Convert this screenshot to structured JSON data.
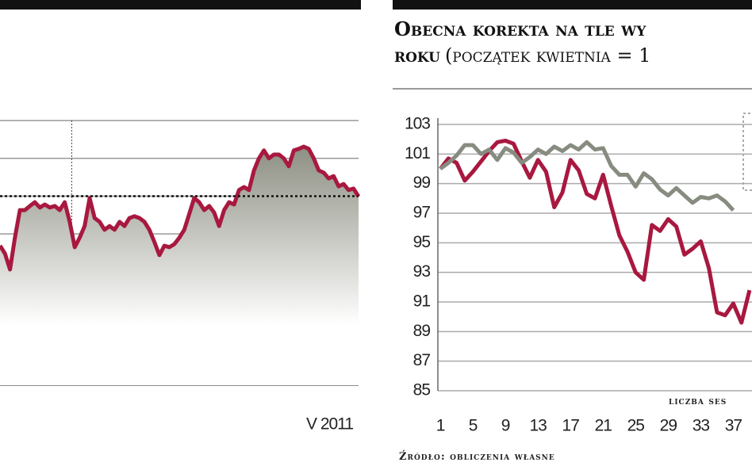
{
  "chart_data": [
    {
      "type": "line",
      "series": [
        {
          "color": "#a8183f",
          "values": [
            3.69,
            3.48,
            3.06,
            3.9,
            4.63,
            4.63,
            4.74,
            4.84,
            4.7,
            4.78,
            4.7,
            4.74,
            4.63,
            4.84,
            4.32,
            3.65,
            3.9,
            4.21,
            4.95,
            4.42,
            4.32,
            4.11,
            4.21,
            4.11,
            4.32,
            4.21,
            4.42,
            4.47,
            4.42,
            4.32,
            4.11,
            3.79,
            3.44,
            3.69,
            3.65,
            3.73,
            3.9,
            4.11,
            4.53,
            4.95,
            4.84,
            4.63,
            4.74,
            4.57,
            4.21,
            4.63,
            4.84,
            4.78,
            5.16,
            5.24,
            5.16,
            5.68,
            6.0,
            6.21,
            6.0,
            6.1,
            6.1,
            6.0,
            5.79,
            6.21,
            6.25,
            6.31,
            6.25,
            6.0,
            5.68,
            5.62,
            5.47,
            5.53,
            5.26,
            5.32,
            5.16,
            5.2,
            4.99
          ]
        }
      ],
      "ylim": [
        0,
        7.84
      ],
      "grid_lines": [
        0,
        1,
        2,
        3,
        4,
        5,
        6,
        7
      ],
      "grid": true,
      "reference_line": 5,
      "vline_index": 14.4,
      "area_fill": true,
      "annotation": "V 2011"
    },
    {
      "type": "line",
      "title": "Obecna korekta na tle wy",
      "subtitle_bold": "roku",
      "subtitle": "(początek kwietnia = 1",
      "x": [
        1,
        2,
        3,
        4,
        5,
        6,
        7,
        8,
        9,
        10,
        11,
        12,
        13,
        14,
        15,
        16,
        17,
        18,
        19,
        20,
        21,
        22,
        23,
        24,
        25,
        26,
        27,
        28,
        29,
        30,
        31,
        32,
        33,
        34,
        35,
        36,
        37,
        38,
        39
      ],
      "series": [
        {
          "color": "#a8183f",
          "values": [
            100,
            100.7,
            100.4,
            99.2,
            99.8,
            100.5,
            101.2,
            101.8,
            101.9,
            101.7,
            100.5,
            99.4,
            100.6,
            99.8,
            97.4,
            98.4,
            100.6,
            99.9,
            98.3,
            98,
            99.6,
            97.5,
            95.5,
            94.4,
            93,
            92.5,
            96.2,
            95.8,
            96.6,
            96.1,
            94.2,
            94.6,
            95.1,
            93.3,
            90.3,
            90.1,
            90.9,
            89.6,
            91.8
          ]
        },
        {
          "color": "#878c80",
          "values": [
            100,
            100.4,
            100.9,
            101.6,
            101.6,
            101,
            101.3,
            100.6,
            101.4,
            101.1,
            100.4,
            100.8,
            101.3,
            101,
            101.5,
            101.2,
            101.6,
            101.3,
            101.8,
            101.3,
            101.4,
            100.2,
            99.6,
            99.6,
            98.8,
            99.7,
            99.3,
            98.6,
            98.2,
            98.7,
            98.2,
            97.7,
            98.1,
            98,
            98.2,
            97.8,
            97.2,
            null,
            null
          ]
        }
      ],
      "xlim": [
        0.7,
        39.3
      ],
      "xticks": [
        1,
        5,
        9,
        13,
        17,
        21,
        25,
        29,
        33,
        37
      ],
      "ylim": [
        85,
        103
      ],
      "yticks": [
        85,
        87,
        89,
        91,
        93,
        95,
        97,
        99,
        101,
        103
      ],
      "grid": true,
      "x_label": "liczba ses",
      "source": "Źródło: obliczenia własne"
    }
  ]
}
